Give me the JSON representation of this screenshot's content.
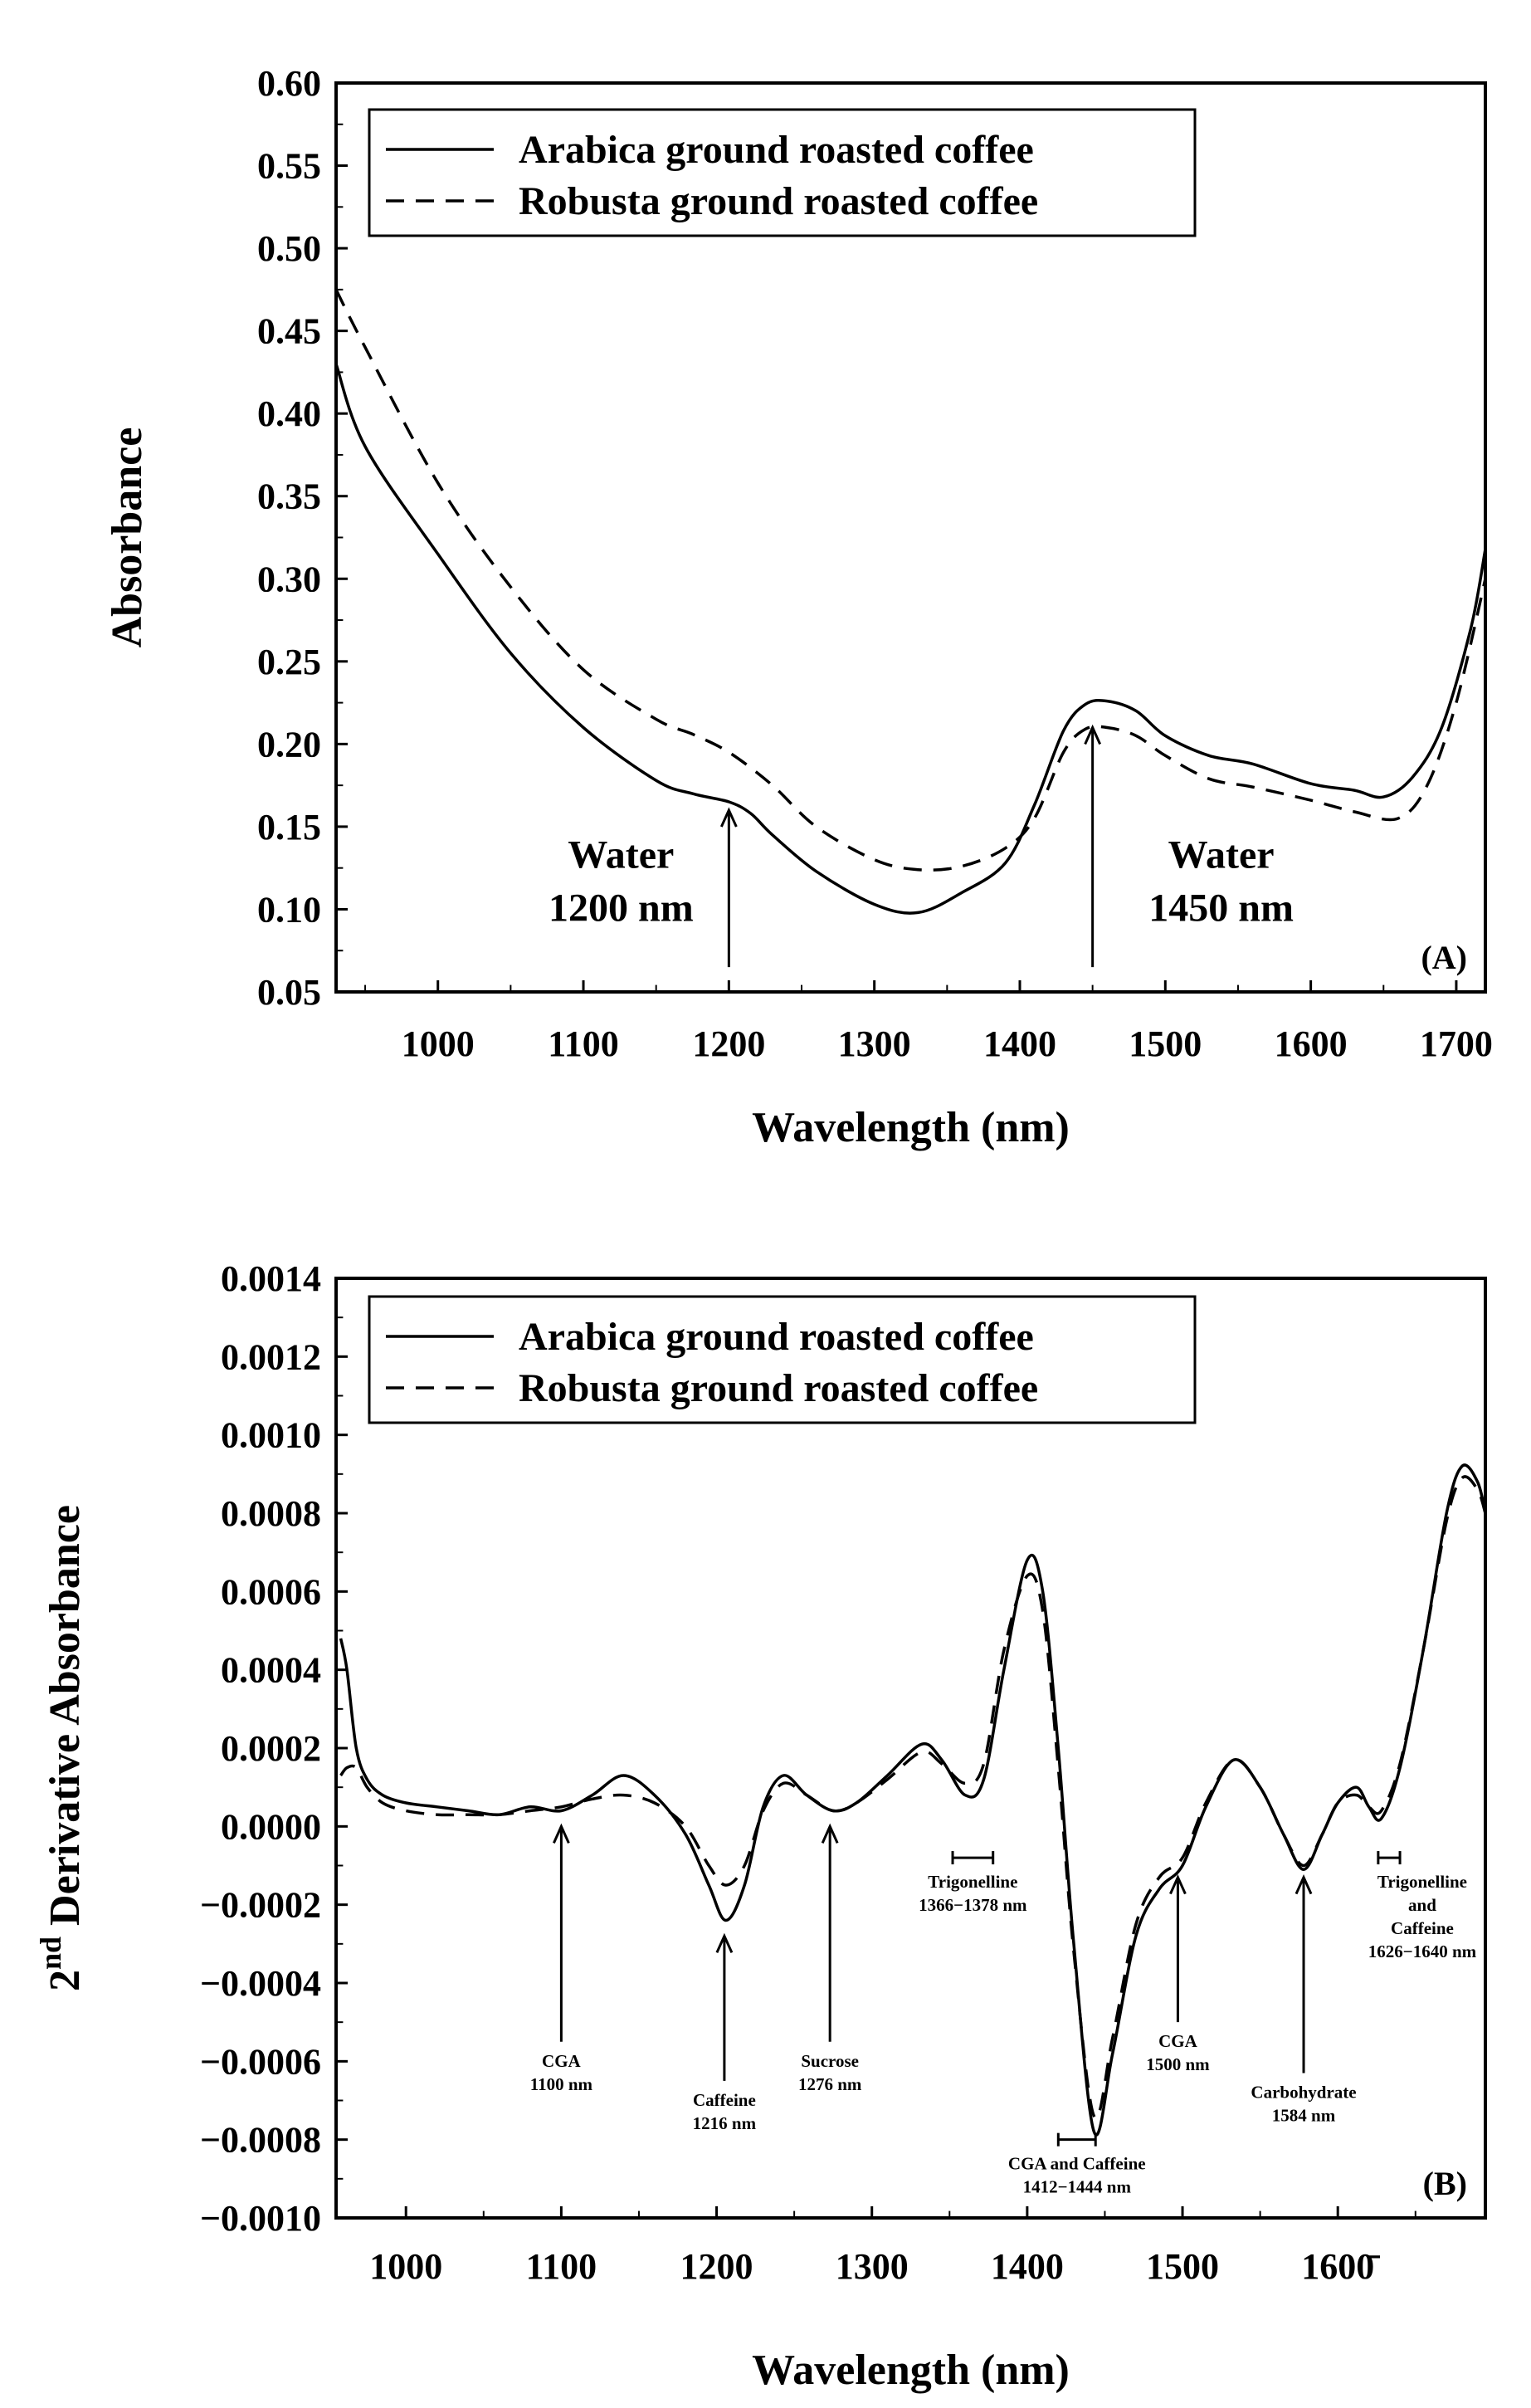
{
  "chart_data": [
    {
      "panel": "A",
      "type": "line",
      "panel_label": "(A)",
      "xlabel": "Wavelength (nm)",
      "ylabel": "Absorbance",
      "xlim": [
        930,
        1720
      ],
      "ylim": [
        0.05,
        0.6
      ],
      "xticks": [
        1000,
        1100,
        1200,
        1300,
        1400,
        1500,
        1600,
        1700
      ],
      "xtick_labels": [
        "1000",
        "1100",
        "1200",
        "1300",
        "1400",
        "1500",
        "1600",
        "1700"
      ],
      "yticks": [
        0.05,
        0.1,
        0.15,
        0.2,
        0.25,
        0.3,
        0.35,
        0.4,
        0.45,
        0.5,
        0.55,
        0.6
      ],
      "ytick_labels": [
        "0.05",
        "0.10",
        "0.15",
        "0.20",
        "0.25",
        "0.30",
        "0.35",
        "0.40",
        "0.45",
        "0.50",
        "0.55",
        "0.60"
      ],
      "legend_position": "top-left",
      "series": [
        {
          "name": "Arabica ground roasted coffee",
          "style": "solid",
          "x": [
            930,
            950,
            1000,
            1050,
            1100,
            1150,
            1175,
            1200,
            1215,
            1230,
            1260,
            1300,
            1330,
            1360,
            1390,
            1410,
            1430,
            1445,
            1460,
            1480,
            1500,
            1530,
            1560,
            1600,
            1630,
            1650,
            1670,
            1690,
            1710,
            1720
          ],
          "y": [
            0.43,
            0.38,
            0.315,
            0.255,
            0.21,
            0.178,
            0.17,
            0.165,
            0.158,
            0.145,
            0.123,
            0.103,
            0.098,
            0.11,
            0.128,
            0.163,
            0.208,
            0.224,
            0.226,
            0.22,
            0.205,
            0.193,
            0.188,
            0.176,
            0.172,
            0.168,
            0.18,
            0.21,
            0.27,
            0.318
          ]
        },
        {
          "name": "Robusta ground roasted coffee",
          "style": "dashed",
          "x": [
            930,
            950,
            1000,
            1050,
            1100,
            1150,
            1175,
            1200,
            1230,
            1260,
            1300,
            1330,
            1360,
            1390,
            1410,
            1430,
            1445,
            1460,
            1480,
            1500,
            1530,
            1560,
            1600,
            1630,
            1660,
            1680,
            1700,
            1720
          ],
          "y": [
            0.475,
            0.44,
            0.358,
            0.295,
            0.245,
            0.215,
            0.206,
            0.195,
            0.175,
            0.15,
            0.13,
            0.124,
            0.126,
            0.137,
            0.155,
            0.195,
            0.209,
            0.21,
            0.205,
            0.193,
            0.179,
            0.174,
            0.166,
            0.159,
            0.155,
            0.175,
            0.225,
            0.3
          ]
        }
      ],
      "annotations": [
        {
          "lines": [
            "Water",
            "1200 nm"
          ],
          "x": 1200,
          "arrow_from": 0.065,
          "arrow_to": 0.16
        },
        {
          "lines": [
            "Water",
            "1450 nm"
          ],
          "x": 1450,
          "arrow_from": 0.065,
          "arrow_to": 0.21
        }
      ]
    },
    {
      "panel": "B",
      "type": "line",
      "panel_label": "(B)",
      "xlabel": "Wavelength (nm)",
      "ylabel_sup": "nd",
      "ylabel_base": "2",
      "ylabel": "Derivative Absorbance",
      "xlim": [
        955,
        1695
      ],
      "ylim": [
        -0.001,
        0.0014
      ],
      "xticks": [
        1000,
        1100,
        1200,
        1300,
        1400,
        1500,
        1600
      ],
      "xtick_labels": [
        "1000",
        "1100",
        "1200",
        "1300",
        "1400",
        "1500",
        "1600̄"
      ],
      "yticks": [
        -0.001,
        -0.0008,
        -0.0006,
        -0.0004,
        -0.0002,
        0.0,
        0.0002,
        0.0004,
        0.0006,
        0.0008,
        0.001,
        0.0012,
        0.0014
      ],
      "ytick_labels": [
        "−0.0010",
        "−0.0008",
        "−0.0006",
        "−0.0004",
        "−0.0002",
        "0.0000",
        "0.0002",
        "0.0004",
        "0.0006",
        "0.0008",
        "0.0010",
        "0.0012",
        "0.0014"
      ],
      "legend_position": "top-left",
      "series": [
        {
          "name": "Arabica ground roasted coffee",
          "style": "solid",
          "x": [
            958,
            962,
            968,
            975,
            985,
            1000,
            1020,
            1040,
            1060,
            1080,
            1100,
            1120,
            1140,
            1160,
            1180,
            1195,
            1206,
            1218,
            1230,
            1243,
            1258,
            1275,
            1290,
            1310,
            1332,
            1345,
            1360,
            1372,
            1385,
            1400,
            1410,
            1420,
            1430,
            1443,
            1455,
            1470,
            1485,
            1500,
            1515,
            1533,
            1550,
            1565,
            1578,
            1590,
            1600,
            1612,
            1620,
            1628,
            1640,
            1655,
            1670,
            1680,
            1690,
            1695
          ],
          "y": [
            0.00048,
            0.0004,
            0.0002,
            0.00012,
            8e-05,
            6e-05,
            5e-05,
            4e-05,
            3e-05,
            5e-05,
            4e-05,
            8e-05,
            0.00013,
            8e-05,
            -2e-05,
            -0.00015,
            -0.00024,
            -0.00015,
            5e-05,
            0.00013,
            8e-05,
            4e-05,
            6e-05,
            0.00013,
            0.00021,
            0.00017,
            8e-05,
            0.00012,
            0.0004,
            0.00068,
            0.0006,
            0.0002,
            -0.0003,
            -0.00078,
            -0.00058,
            -0.00028,
            -0.00016,
            -0.0001,
            5e-05,
            0.00017,
            0.0001,
            -2e-05,
            -0.00011,
            -2e-05,
            6e-05,
            0.0001,
            5e-05,
            2e-05,
            0.00015,
            0.00045,
            0.0008,
            0.00092,
            0.00088,
            0.0008
          ]
        },
        {
          "name": "Robusta ground roasted coffee",
          "style": "dashed",
          "x": [
            958,
            962,
            968,
            975,
            985,
            1000,
            1020,
            1040,
            1060,
            1080,
            1100,
            1120,
            1140,
            1160,
            1180,
            1195,
            1206,
            1218,
            1230,
            1243,
            1258,
            1275,
            1290,
            1310,
            1332,
            1345,
            1360,
            1372,
            1385,
            1400,
            1410,
            1420,
            1430,
            1443,
            1455,
            1470,
            1485,
            1500,
            1515,
            1533,
            1550,
            1565,
            1578,
            1590,
            1600,
            1612,
            1620,
            1628,
            1640,
            1655,
            1670,
            1680,
            1690,
            1695
          ],
          "y": [
            0.00013,
            0.00015,
            0.00015,
            0.0001,
            6e-05,
            4e-05,
            3e-05,
            3e-05,
            3e-05,
            4e-05,
            5e-05,
            7e-05,
            8e-05,
            6e-05,
            0.0,
            -0.0001,
            -0.00015,
            -0.0001,
            4e-05,
            0.00011,
            8e-05,
            4e-05,
            6e-05,
            0.00012,
            0.00019,
            0.00016,
            0.00011,
            0.00016,
            0.00045,
            0.00064,
            0.00055,
            0.00015,
            -0.00032,
            -0.00074,
            -0.00054,
            -0.00025,
            -0.00013,
            -8e-05,
            6e-05,
            0.00017,
            0.0001,
            -2e-05,
            -0.0001,
            -2e-05,
            6e-05,
            8e-05,
            5e-05,
            4e-05,
            0.00016,
            0.00045,
            0.00078,
            0.00089,
            0.00086,
            0.0008
          ]
        }
      ],
      "annotations": [
        {
          "lines": [
            "CGA",
            "1100 nm"
          ],
          "x": 1100,
          "arrow_from": -0.00055,
          "arrow_to": 0.0
        },
        {
          "lines": [
            "Caffeine",
            "1216 nm"
          ],
          "x": 1205,
          "arrow_from": -0.00065,
          "arrow_to": -0.00028
        },
        {
          "lines": [
            "Sucrose",
            "1276 nm"
          ],
          "x": 1273,
          "arrow_from": -0.00055,
          "arrow_to": 0.0
        },
        {
          "lines": [
            "CGA",
            "1500 nm"
          ],
          "x": 1497,
          "arrow_from": -0.0005,
          "arrow_to": -0.00013
        },
        {
          "lines": [
            "Carbohydrate",
            "1584 nm"
          ],
          "x": 1578,
          "arrow_from": -0.00063,
          "arrow_to": -0.00013
        }
      ],
      "ranges": [
        {
          "lines": [
            "Trigonelline",
            "1366−1378 nm"
          ],
          "from": 1352,
          "to": 1378,
          "at": -8e-05
        },
        {
          "lines": [
            "CGA and Caffeine",
            "1412−1444 nm"
          ],
          "from": 1420,
          "to": 1444,
          "at": -0.0008
        },
        {
          "lines": [
            "Trigonelline",
            "and",
            "Caffeine",
            "1626−1640 nm"
          ],
          "from": 1626,
          "to": 1640,
          "at": -8e-05
        }
      ]
    }
  ]
}
